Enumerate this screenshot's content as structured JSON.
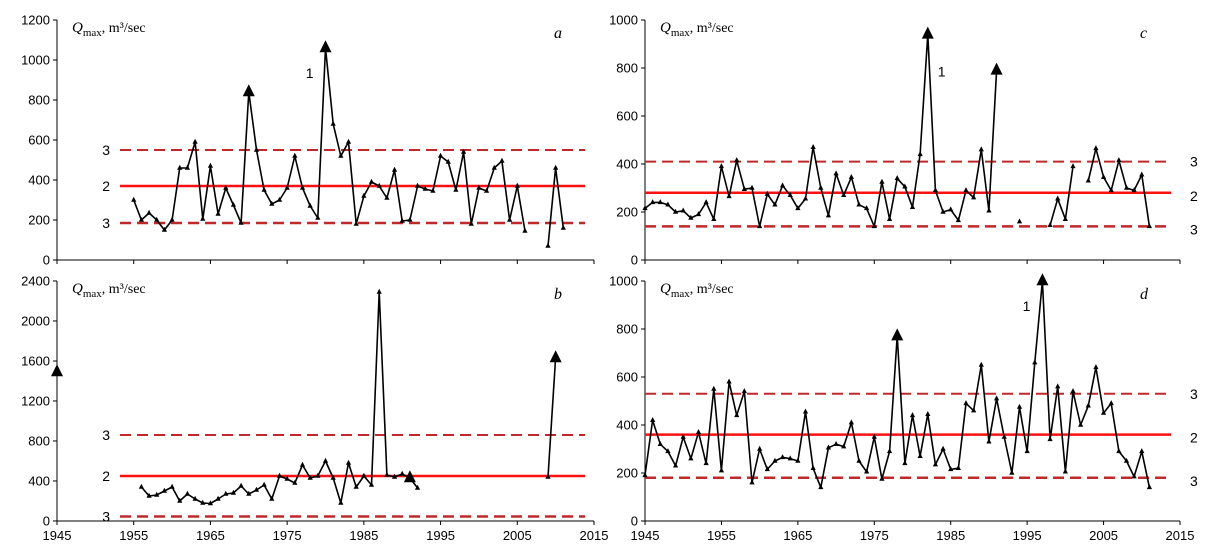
{
  "chart_data": [
    {
      "panel_letter": "a",
      "type": "line",
      "ylabel_main": "Q",
      "ylabel_sub": "max",
      "ylabel_rest": ", m³/sec",
      "ylim": [
        0,
        1200
      ],
      "yticks": [
        0,
        200,
        400,
        600,
        800,
        1000,
        1200
      ],
      "xlim": [
        1945,
        2015
      ],
      "xticks": [],
      "mean": 370,
      "upper": 550,
      "lower": 185,
      "line_labels": {
        "one": "1",
        "two": "2",
        "three": "3"
      },
      "label_side": "left",
      "peak_label_year": 1980,
      "big_markers": [
        1970,
        1980
      ],
      "segments": [
        [
          [
            1955,
            300
          ],
          [
            1956,
            200
          ],
          [
            1957,
            235
          ],
          [
            1958,
            200
          ],
          [
            1959,
            150
          ],
          [
            1960,
            200
          ],
          [
            1961,
            460
          ],
          [
            1962,
            460
          ],
          [
            1963,
            590
          ],
          [
            1964,
            205
          ],
          [
            1965,
            470
          ],
          [
            1966,
            230
          ],
          [
            1967,
            360
          ],
          [
            1968,
            275
          ],
          [
            1969,
            185
          ],
          [
            1970,
            840
          ],
          [
            1971,
            550
          ],
          [
            1972,
            350
          ],
          [
            1973,
            280
          ],
          [
            1974,
            300
          ],
          [
            1975,
            360
          ],
          [
            1976,
            520
          ],
          [
            1977,
            360
          ],
          [
            1978,
            270
          ],
          [
            1979,
            210
          ],
          [
            1980,
            1060
          ],
          [
            1981,
            680
          ],
          [
            1982,
            520
          ],
          [
            1983,
            590
          ],
          [
            1984,
            180
          ],
          [
            1985,
            320
          ],
          [
            1986,
            390
          ],
          [
            1987,
            370
          ],
          [
            1988,
            310
          ],
          [
            1989,
            450
          ],
          [
            1990,
            195
          ],
          [
            1991,
            200
          ],
          [
            1992,
            370
          ],
          [
            1993,
            355
          ],
          [
            1994,
            345
          ],
          [
            1995,
            520
          ],
          [
            1996,
            490
          ],
          [
            1997,
            350
          ],
          [
            1998,
            540
          ],
          [
            1999,
            180
          ],
          [
            2000,
            360
          ],
          [
            2001,
            345
          ],
          [
            2002,
            460
          ],
          [
            2003,
            495
          ],
          [
            2004,
            200
          ],
          [
            2005,
            370
          ],
          [
            2006,
            145
          ]
        ],
        [
          [
            2009,
            70
          ],
          [
            2010,
            460
          ],
          [
            2011,
            160
          ]
        ]
      ]
    },
    {
      "panel_letter": "b",
      "type": "line",
      "ylabel_main": "Q",
      "ylabel_sub": "max",
      "ylabel_rest": ", m³/sec",
      "ylim": [
        0,
        2400
      ],
      "yticks": [
        0,
        400,
        800,
        1200,
        1600,
        2000,
        2400
      ],
      "xlim": [
        1945,
        2015
      ],
      "xticks": [
        1945,
        1955,
        1965,
        1975,
        1985,
        1995,
        2005,
        2015
      ],
      "mean": 450,
      "upper": 860,
      "lower": 45,
      "line_labels": {
        "one": "",
        "two": "2",
        "three": "3"
      },
      "label_side": "left",
      "big_markers": [
        1945,
        1991,
        2010
      ],
      "segments": [
        [
          [
            1945,
            1490
          ]
        ],
        [
          [
            1956,
            340
          ],
          [
            1957,
            250
          ],
          [
            1958,
            260
          ],
          [
            1959,
            300
          ],
          [
            1960,
            340
          ],
          [
            1961,
            200
          ],
          [
            1962,
            270
          ],
          [
            1963,
            220
          ],
          [
            1964,
            180
          ],
          [
            1965,
            175
          ],
          [
            1966,
            220
          ],
          [
            1967,
            270
          ],
          [
            1968,
            280
          ],
          [
            1969,
            350
          ],
          [
            1970,
            270
          ],
          [
            1971,
            310
          ],
          [
            1972,
            360
          ],
          [
            1973,
            220
          ],
          [
            1974,
            450
          ],
          [
            1975,
            420
          ],
          [
            1976,
            380
          ],
          [
            1977,
            560
          ],
          [
            1978,
            430
          ],
          [
            1979,
            450
          ],
          [
            1980,
            600
          ],
          [
            1981,
            430
          ],
          [
            1982,
            180
          ],
          [
            1983,
            580
          ],
          [
            1984,
            340
          ],
          [
            1985,
            450
          ],
          [
            1986,
            360
          ],
          [
            1987,
            2290
          ],
          [
            1988,
            460
          ],
          [
            1989,
            440
          ],
          [
            1990,
            470
          ],
          [
            1991,
            430
          ],
          [
            1992,
            330
          ]
        ],
        [
          [
            2009,
            440
          ],
          [
            2010,
            1630
          ]
        ]
      ]
    },
    {
      "panel_letter": "c",
      "type": "line",
      "ylabel_main": "Q",
      "ylabel_sub": "max",
      "ylabel_rest": ", m³/sec",
      "ylim": [
        0,
        1000
      ],
      "yticks": [
        0,
        200,
        400,
        600,
        800,
        1000
      ],
      "xlim": [
        1945,
        2015
      ],
      "xticks": [],
      "mean": 280,
      "upper": 410,
      "lower": 140,
      "line_labels": {
        "one": "1",
        "two": "2",
        "three": "3"
      },
      "label_side": "right",
      "peak_label_year": 1982,
      "big_markers": [
        1982,
        1991
      ],
      "segments": [
        [
          [
            1945,
            215
          ],
          [
            1946,
            240
          ],
          [
            1947,
            240
          ],
          [
            1948,
            230
          ],
          [
            1949,
            200
          ],
          [
            1950,
            205
          ],
          [
            1951,
            175
          ],
          [
            1952,
            190
          ],
          [
            1953,
            240
          ],
          [
            1954,
            170
          ],
          [
            1955,
            390
          ],
          [
            1956,
            265
          ],
          [
            1957,
            415
          ],
          [
            1958,
            295
          ],
          [
            1959,
            300
          ],
          [
            1960,
            140
          ],
          [
            1961,
            275
          ],
          [
            1962,
            230
          ],
          [
            1963,
            310
          ],
          [
            1964,
            270
          ],
          [
            1965,
            215
          ],
          [
            1966,
            255
          ],
          [
            1967,
            470
          ],
          [
            1968,
            300
          ],
          [
            1969,
            185
          ],
          [
            1970,
            360
          ],
          [
            1971,
            270
          ],
          [
            1972,
            345
          ],
          [
            1973,
            230
          ],
          [
            1974,
            215
          ],
          [
            1975,
            140
          ],
          [
            1976,
            325
          ],
          [
            1977,
            170
          ],
          [
            1978,
            340
          ],
          [
            1979,
            305
          ],
          [
            1980,
            220
          ],
          [
            1981,
            440
          ],
          [
            1982,
            940
          ],
          [
            1983,
            290
          ],
          [
            1984,
            200
          ],
          [
            1985,
            210
          ],
          [
            1986,
            165
          ],
          [
            1987,
            290
          ],
          [
            1988,
            260
          ],
          [
            1989,
            460
          ],
          [
            1990,
            205
          ],
          [
            1991,
            790
          ]
        ],
        [
          [
            1994,
            160
          ]
        ],
        [
          [
            1998,
            145
          ],
          [
            1999,
            255
          ],
          [
            2000,
            170
          ],
          [
            2001,
            390
          ]
        ],
        [
          [
            2003,
            330
          ],
          [
            2004,
            465
          ],
          [
            2005,
            345
          ],
          [
            2006,
            290
          ],
          [
            2007,
            415
          ],
          [
            2008,
            300
          ],
          [
            2009,
            290
          ],
          [
            2010,
            355
          ],
          [
            2011,
            140
          ]
        ]
      ]
    },
    {
      "panel_letter": "d",
      "type": "line",
      "ylabel_main": "Q",
      "ylabel_sub": "max",
      "ylabel_rest": ", m³/sec",
      "ylim": [
        0,
        1000
      ],
      "yticks": [
        0,
        200,
        400,
        600,
        800,
        1000
      ],
      "xlim": [
        1945,
        2015
      ],
      "xticks": [
        1945,
        1955,
        1965,
        1975,
        1985,
        1995,
        2005,
        2015
      ],
      "mean": 360,
      "upper": 530,
      "lower": 180,
      "line_labels": {
        "one": "1",
        "two": "2",
        "three": "3"
      },
      "label_side": "right",
      "peak_label_year": 1997,
      "big_markers": [
        1978,
        1997
      ],
      "segments": [
        [
          [
            1945,
            190
          ],
          [
            1946,
            420
          ],
          [
            1947,
            320
          ],
          [
            1948,
            290
          ],
          [
            1949,
            230
          ],
          [
            1950,
            350
          ],
          [
            1951,
            260
          ],
          [
            1952,
            370
          ],
          [
            1953,
            240
          ],
          [
            1954,
            550
          ],
          [
            1955,
            210
          ],
          [
            1956,
            580
          ],
          [
            1957,
            440
          ],
          [
            1958,
            540
          ],
          [
            1959,
            160
          ],
          [
            1960,
            300
          ],
          [
            1961,
            215
          ],
          [
            1962,
            250
          ],
          [
            1963,
            265
          ],
          [
            1964,
            260
          ],
          [
            1965,
            250
          ],
          [
            1966,
            455
          ],
          [
            1967,
            220
          ],
          [
            1968,
            140
          ],
          [
            1969,
            305
          ],
          [
            1970,
            320
          ],
          [
            1971,
            310
          ],
          [
            1972,
            410
          ],
          [
            1973,
            250
          ],
          [
            1974,
            205
          ],
          [
            1975,
            350
          ],
          [
            1976,
            175
          ],
          [
            1977,
            290
          ],
          [
            1978,
            770
          ],
          [
            1979,
            240
          ],
          [
            1980,
            440
          ],
          [
            1981,
            270
          ],
          [
            1982,
            445
          ],
          [
            1983,
            235
          ],
          [
            1984,
            300
          ],
          [
            1985,
            215
          ],
          [
            1986,
            220
          ],
          [
            1987,
            490
          ],
          [
            1988,
            460
          ],
          [
            1989,
            650
          ],
          [
            1990,
            330
          ],
          [
            1991,
            510
          ],
          [
            1992,
            350
          ],
          [
            1993,
            200
          ],
          [
            1994,
            475
          ],
          [
            1995,
            290
          ],
          [
            1996,
            660
          ],
          [
            1997,
            1000
          ],
          [
            1998,
            340
          ],
          [
            1999,
            560
          ],
          [
            2000,
            205
          ],
          [
            2001,
            540
          ],
          [
            2002,
            400
          ],
          [
            2003,
            480
          ],
          [
            2004,
            640
          ],
          [
            2005,
            450
          ],
          [
            2006,
            490
          ],
          [
            2007,
            290
          ],
          [
            2008,
            250
          ],
          [
            2009,
            185
          ],
          [
            2010,
            290
          ],
          [
            2011,
            140
          ]
        ]
      ]
    }
  ]
}
